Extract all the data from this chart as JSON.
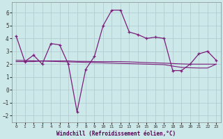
{
  "x": [
    0,
    1,
    2,
    3,
    4,
    5,
    6,
    7,
    8,
    9,
    10,
    11,
    12,
    13,
    14,
    15,
    16,
    17,
    18,
    19,
    20,
    21,
    22,
    23
  ],
  "windchill": [
    4.2,
    2.2,
    2.7,
    2.0,
    3.6,
    3.5,
    2.0,
    -1.7,
    1.6,
    2.6,
    5.0,
    6.2,
    6.2,
    4.5,
    4.3,
    4.0,
    4.1,
    4.0,
    1.5,
    1.5,
    2.0,
    2.8,
    3.0,
    2.3
  ],
  "trend1": [
    2.2,
    2.2,
    2.2,
    2.25,
    2.25,
    2.25,
    2.25,
    2.22,
    2.22,
    2.2,
    2.2,
    2.2,
    2.2,
    2.18,
    2.15,
    2.12,
    2.1,
    2.08,
    2.05,
    2.02,
    2.0,
    2.0,
    2.0,
    2.0
  ],
  "trend2": [
    2.3,
    2.28,
    2.26,
    2.24,
    2.22,
    2.2,
    2.18,
    2.16,
    2.14,
    2.12,
    2.1,
    2.08,
    2.06,
    2.04,
    2.02,
    2.0,
    1.98,
    1.96,
    1.85,
    1.75,
    1.72,
    1.7,
    1.7,
    2.0
  ],
  "line_color": "#7B1E7B",
  "bg_color": "#cce8e8",
  "grid_color": "#b0c8d0",
  "xlabel": "Windchill (Refroidissement éolien,°C)",
  "ylabel_ticks": [
    -2,
    -1,
    0,
    1,
    2,
    3,
    4,
    5,
    6
  ],
  "xlim": [
    -0.5,
    23.5
  ],
  "ylim": [
    -2.5,
    6.8
  ]
}
